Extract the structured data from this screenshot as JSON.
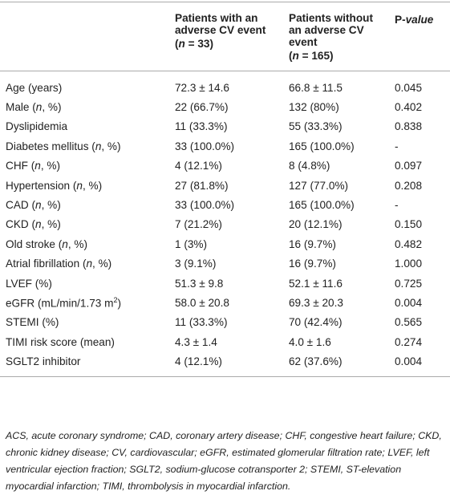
{
  "table": {
    "header": [
      {
        "title": [
          "Patients with an",
          "adverse CV event"
        ],
        "count": [
          "(",
          "n",
          " = 33)"
        ]
      },
      {
        "title": [
          "Patients without",
          "an adverse CV",
          "event"
        ],
        "count": [
          "(",
          "n",
          " = 165)"
        ]
      },
      {
        "title": [
          "P",
          "-value"
        ]
      }
    ],
    "rows": [
      {
        "label": [
          "Age (years)"
        ],
        "cells": [
          "72.3 ± 14.6",
          "66.8 ± 11.5",
          "0.045"
        ]
      },
      {
        "label": [
          "Male (",
          "n",
          ", %)"
        ],
        "cells": [
          "22 (66.7%)",
          "132 (80%)",
          "0.402"
        ]
      },
      {
        "label": [
          "Dyslipidemia"
        ],
        "cells": [
          "11 (33.3%)",
          "55 (33.3%)",
          "0.838"
        ]
      },
      {
        "label": [
          "Diabetes mellitus (",
          "n",
          ", %)"
        ],
        "cells": [
          "33 (100.0%)",
          "165 (100.0%)",
          "-"
        ]
      },
      {
        "label": [
          "CHF (",
          "n",
          ", %)"
        ],
        "cells": [
          "4 (12.1%)",
          "8 (4.8%)",
          "0.097"
        ]
      },
      {
        "label": [
          "Hypertension (",
          "n",
          ", %)"
        ],
        "cells": [
          "27 (81.8%)",
          "127 (77.0%)",
          "0.208"
        ]
      },
      {
        "label": [
          "CAD (",
          "n",
          ", %)"
        ],
        "cells": [
          "33 (100.0%)",
          "165 (100.0%)",
          "-"
        ]
      },
      {
        "label": [
          "CKD (",
          "n",
          ", %)"
        ],
        "cells": [
          "7 (21.2%)",
          "20 (12.1%)",
          "0.150"
        ]
      },
      {
        "label": [
          "Old stroke (",
          "n",
          ", %)"
        ],
        "cells": [
          "1 (3%)",
          "16 (9.7%)",
          "0.482"
        ]
      },
      {
        "label": [
          "Atrial fibrillation (",
          "n",
          ", %)"
        ],
        "cells": [
          "3 (9.1%)",
          "16 (9.7%)",
          "1.000"
        ]
      },
      {
        "label": [
          "LVEF (%)"
        ],
        "cells": [
          "51.3 ± 9.8",
          "52.1 ± 11.6",
          "0.725"
        ]
      },
      {
        "label": [
          "eGFR (mL/min/1.73 m",
          "2",
          ")"
        ],
        "cells": [
          "58.0 ± 20.8",
          "69.3 ± 20.3",
          "0.004"
        ]
      },
      {
        "label": [
          "STEMI (%)"
        ],
        "cells": [
          "11 (33.3%)",
          "70 (42.4%)",
          "0.565"
        ]
      },
      {
        "label": [
          "TIMI risk score (mean)"
        ],
        "cells": [
          "4.3 ± 1.4",
          "4.0 ± 1.6",
          "0.274"
        ]
      },
      {
        "label": [
          "SGLT2 inhibitor"
        ],
        "cells": [
          "4 (12.1%)",
          "62 (37.6%)",
          "0.004"
        ]
      }
    ],
    "footnote": "ACS, acute coronary syndrome; CAD, coronary artery disease; CHF, congestive heart failure; CKD, chronic kidney disease; CV, cardiovascular; eGFR, estimated glomerular filtration rate; LVEF, left ventricular ejection fraction; SGLT2, sodium-glucose cotransporter 2; STEMI, ST-elevation myocardial infarction; TIMI, thrombolysis in myocardial infarction."
  }
}
